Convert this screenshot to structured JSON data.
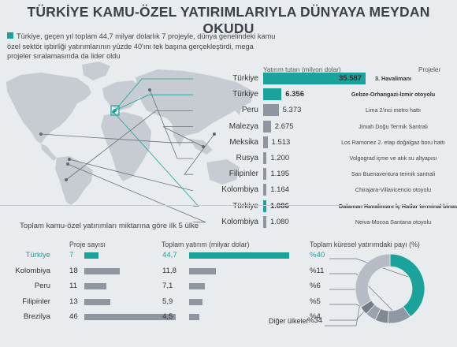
{
  "title": "TÜRKİYE KAMU-ÖZEL YATIRIMLARIYLA DÜNYAYA MEYDAN OKUDU",
  "intro": "Türkiye, geçen yıl toplam 44,7 milyar dolarlık 7 projeyle, dünya genelindeki kamu özel sektör işbirliği yatırımlarının yüzde 40'ını tek başına gerçekleştirdi, mega projeler sıralamasında da lider oldu",
  "colors": {
    "accent": "#1aa39a",
    "bar": "#8f969f",
    "map": "#c7ccd2",
    "background": "#e9ecee"
  },
  "chart_data": [
    {
      "type": "bar",
      "orientation": "horizontal",
      "ylabel": "Yatırım tutarı (milyon dolar)",
      "projects_header": "Projeler",
      "categories": [
        "Türkiye",
        "Türkiye",
        "Peru",
        "Malezya",
        "Meksika",
        "Rusya",
        "Filipinler",
        "Kolombiya",
        "Türkiye",
        "Kolombiya"
      ],
      "values": [
        35587,
        6356,
        5373,
        2675,
        1513,
        1200,
        1195,
        1164,
        1086,
        1080
      ],
      "value_labels": [
        "35.587",
        "6.356",
        "5.373",
        "2.675",
        "1.513",
        "1.200",
        "1.195",
        "1.164",
        "1.086",
        "1.080"
      ],
      "projects": [
        "3. Havalimanı",
        "Gebze-Orhangazi-İzmir otoyolu",
        "Lima 2'inci metro hattı",
        "Jimah Doğu Termik Santrali",
        "Los Ramonez 2. etap doğalgaz boru hattı",
        "Volgograd içme ve atık su altyapısı",
        "San Buenaventura termik santrali",
        "Chirajara-Villavicencio otoyolu",
        "Dalaman Havalimanı İç Hatlar terminal binası",
        "Neiva-Mocoa Santana otoyolu"
      ],
      "highlighted": [
        true,
        true,
        false,
        false,
        false,
        false,
        false,
        false,
        true,
        false
      ]
    },
    {
      "type": "table",
      "title": "Toplam kamu-özel yatırımları miktarına göre ilk 5 ülke",
      "columns": [
        "Proje sayısı",
        "Toplam yatırım (milyar dolar)",
        "Toplam küresel yatırımdaki payı (%)"
      ],
      "countries": [
        "Türkiye",
        "Kolombiya",
        "Peru",
        "Filipinler",
        "Brezilya"
      ],
      "project_counts": [
        7,
        18,
        11,
        13,
        46
      ],
      "investment": [
        44.7,
        11.8,
        7.1,
        5.9,
        4.5
      ],
      "investment_labels": [
        "44,7",
        "11,8",
        "7,1",
        "5,9",
        "4,5"
      ],
      "share_labels": [
        "%40",
        "%11",
        "%6",
        "%5",
        "%4"
      ],
      "share": [
        40,
        11,
        6,
        5,
        4
      ],
      "other_label": "Diğer ülkeler",
      "other_share_label": "%34",
      "other_share": 34
    }
  ]
}
